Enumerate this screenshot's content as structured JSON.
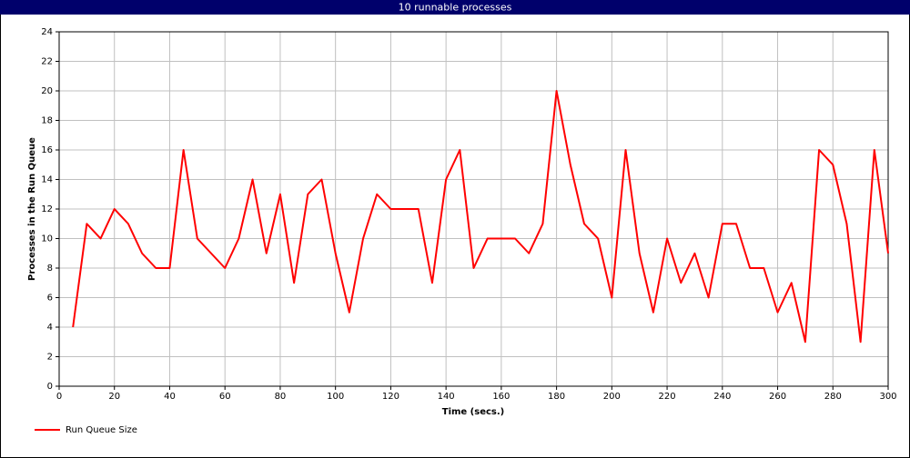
{
  "chart_data": {
    "type": "line",
    "title": "10 runnable processes",
    "x_label": "Time (secs.)",
    "y_label": "Processes in the Run Queue",
    "x": [
      5,
      10,
      15,
      20,
      25,
      30,
      35,
      40,
      45,
      50,
      55,
      60,
      65,
      70,
      75,
      80,
      85,
      90,
      95,
      100,
      105,
      110,
      115,
      120,
      125,
      130,
      135,
      140,
      145,
      150,
      155,
      160,
      165,
      170,
      175,
      180,
      185,
      190,
      195,
      200,
      205,
      210,
      215,
      220,
      225,
      230,
      235,
      240,
      245,
      250,
      255,
      260,
      265,
      270,
      275,
      280,
      285,
      290,
      295,
      300
    ],
    "series": [
      {
        "name": "Run Queue Size",
        "color": "#ff0000",
        "values": [
          4,
          11,
          10,
          12,
          11,
          9,
          8,
          8,
          16,
          10,
          9,
          8,
          10,
          14,
          9,
          13,
          7,
          13,
          14,
          9,
          5,
          10,
          13,
          12,
          12,
          12,
          7,
          14,
          16,
          8,
          10,
          10,
          10,
          9,
          11,
          20,
          15,
          11,
          10,
          6,
          16,
          9,
          5,
          10,
          7,
          9,
          6,
          11,
          11,
          8,
          8,
          5,
          7,
          3,
          16,
          15,
          11,
          3,
          16,
          9
        ]
      }
    ],
    "xlim": [
      0,
      300
    ],
    "xticks": [
      0,
      20,
      40,
      60,
      80,
      100,
      120,
      140,
      160,
      180,
      200,
      220,
      240,
      260,
      280,
      300
    ],
    "ylim": [
      0,
      24
    ],
    "yticks": [
      0,
      2,
      4,
      6,
      8,
      10,
      12,
      14,
      16,
      18,
      20,
      22,
      24
    ],
    "grid": true,
    "legend": "bottom-left"
  }
}
